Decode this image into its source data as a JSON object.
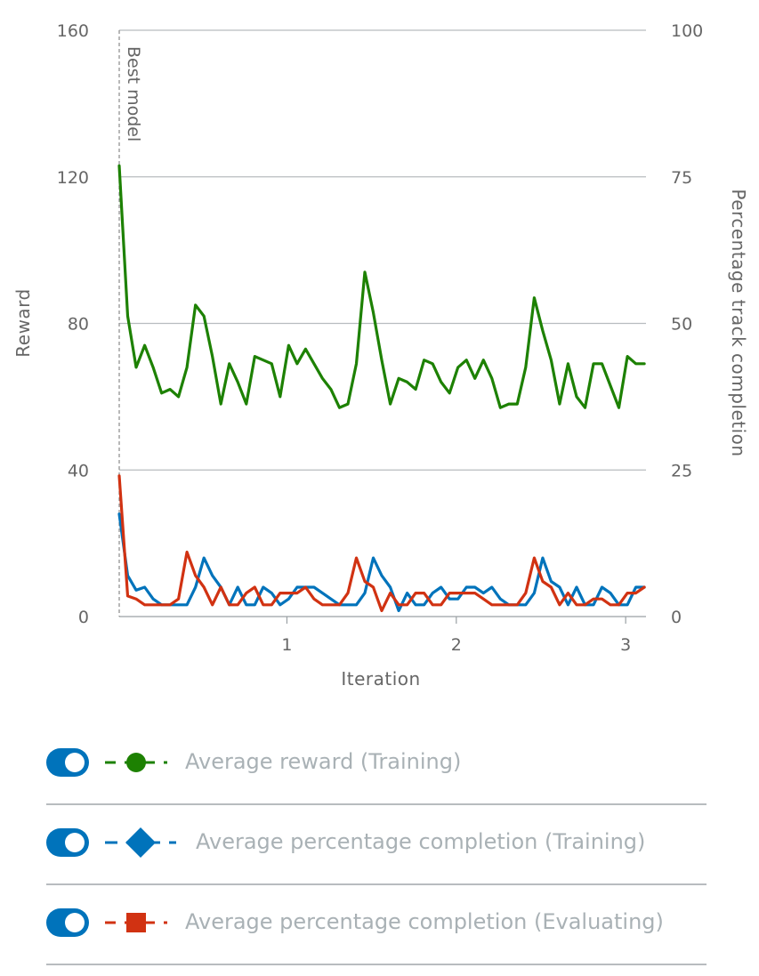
{
  "chart_data": {
    "type": "line",
    "xlabel": "Iteration",
    "ylabel_left": "Reward",
    "ylabel_right": "Percentage track completion",
    "x_ticks": [
      1,
      2,
      3
    ],
    "x_range": [
      0.01,
      3.12
    ],
    "y_left_ticks": [
      0,
      40,
      80,
      120,
      160
    ],
    "y_left_range": [
      0,
      160
    ],
    "y_right_ticks": [
      0,
      25,
      50,
      75,
      100
    ],
    "y_right_range": [
      0,
      100
    ],
    "grid": "horizontal",
    "marker_line": {
      "label": "Best model",
      "x": 0.01
    },
    "series": [
      {
        "name": "Average reward (Training)",
        "axis": "left",
        "color": "#1d8102",
        "marker": "circle",
        "x": [
          0.01,
          0.06,
          0.11,
          0.16,
          0.21,
          0.26,
          0.31,
          0.36,
          0.41,
          0.46,
          0.51,
          0.56,
          0.61,
          0.66,
          0.71,
          0.76,
          0.81,
          0.86,
          0.91,
          0.96,
          1.01,
          1.06,
          1.11,
          1.16,
          1.21,
          1.26,
          1.31,
          1.36,
          1.41,
          1.46,
          1.51,
          1.56,
          1.61,
          1.66,
          1.71,
          1.76,
          1.81,
          1.86,
          1.91,
          1.96,
          2.01,
          2.06,
          2.11,
          2.16,
          2.21,
          2.26,
          2.31,
          2.36,
          2.41,
          2.46,
          2.51,
          2.56,
          2.61,
          2.66,
          2.71,
          2.76,
          2.81,
          2.86,
          2.91,
          2.96,
          3.01,
          3.06,
          3.11
        ],
        "values": [
          123,
          82,
          68,
          74,
          68,
          61,
          62,
          60,
          68,
          85,
          82,
          71,
          58,
          69,
          64,
          58,
          71,
          70,
          69,
          60,
          74,
          69,
          73,
          69,
          65,
          62,
          57,
          58,
          69,
          94,
          83,
          70,
          58,
          65,
          64,
          62,
          70,
          69,
          64,
          61,
          68,
          70,
          65,
          70,
          65,
          57,
          58,
          58,
          68,
          87,
          78,
          70,
          58,
          69,
          60,
          57,
          69,
          69,
          63,
          57,
          71,
          69,
          69
        ]
      },
      {
        "name": "Average percentage completion (Training)",
        "axis": "right",
        "color": "#0073bb",
        "marker": "diamond",
        "x": [
          0.01,
          0.06,
          0.11,
          0.16,
          0.21,
          0.26,
          0.31,
          0.36,
          0.41,
          0.46,
          0.51,
          0.56,
          0.61,
          0.66,
          0.71,
          0.76,
          0.81,
          0.86,
          0.91,
          0.96,
          1.01,
          1.06,
          1.11,
          1.16,
          1.21,
          1.26,
          1.31,
          1.36,
          1.41,
          1.46,
          1.51,
          1.56,
          1.61,
          1.66,
          1.71,
          1.76,
          1.81,
          1.86,
          1.91,
          1.96,
          2.01,
          2.06,
          2.11,
          2.16,
          2.21,
          2.26,
          2.31,
          2.36,
          2.41,
          2.46,
          2.51,
          2.56,
          2.61,
          2.66,
          2.71,
          2.76,
          2.81,
          2.86,
          2.91,
          2.96,
          3.01,
          3.06,
          3.11
        ],
        "values": [
          17.5,
          7,
          4.5,
          5,
          3,
          2,
          2,
          2,
          2,
          5,
          10,
          7,
          5,
          2,
          5,
          2,
          2,
          5,
          4,
          2,
          3,
          5,
          5,
          5,
          4,
          3,
          2,
          2,
          2,
          4,
          10,
          7,
          5,
          1,
          4,
          2,
          2,
          4,
          5,
          3,
          3,
          5,
          5,
          4,
          5,
          3,
          2,
          2,
          2,
          4,
          10,
          6,
          5,
          2,
          5,
          2,
          2,
          5,
          4,
          2,
          2,
          5,
          5
        ]
      },
      {
        "name": "Average percentage completion (Evaluating)",
        "axis": "right",
        "color": "#d13212",
        "marker": "square",
        "x": [
          0.01,
          0.06,
          0.11,
          0.16,
          0.21,
          0.26,
          0.31,
          0.36,
          0.41,
          0.46,
          0.51,
          0.56,
          0.61,
          0.66,
          0.71,
          0.76,
          0.81,
          0.86,
          0.91,
          0.96,
          1.01,
          1.06,
          1.11,
          1.16,
          1.21,
          1.26,
          1.31,
          1.36,
          1.41,
          1.46,
          1.51,
          1.56,
          1.61,
          1.66,
          1.71,
          1.76,
          1.81,
          1.86,
          1.91,
          1.96,
          2.01,
          2.06,
          2.11,
          2.16,
          2.21,
          2.26,
          2.31,
          2.36,
          2.41,
          2.46,
          2.51,
          2.56,
          2.61,
          2.66,
          2.71,
          2.76,
          2.81,
          2.86,
          2.91,
          2.96,
          3.01,
          3.06,
          3.11
        ],
        "values": [
          24,
          3.5,
          3,
          2,
          2,
          2,
          2,
          3,
          11,
          7,
          5,
          2,
          5,
          2,
          2,
          4,
          5,
          2,
          2,
          4,
          4,
          4,
          5,
          3,
          2,
          2,
          2,
          4,
          10,
          6,
          5,
          1,
          4,
          2,
          2,
          4,
          4,
          2,
          2,
          4,
          4,
          4,
          4,
          3,
          2,
          2,
          2,
          2,
          4,
          10,
          6,
          5,
          2,
          4,
          2,
          2,
          3,
          3,
          2,
          2,
          4,
          4,
          5
        ]
      }
    ]
  },
  "legend": {
    "items": [
      {
        "label": "Average reward (Training)",
        "color": "#1d8102",
        "marker": "circle-icon"
      },
      {
        "label": "Average percentage completion (Training)",
        "color": "#0073bb",
        "marker": "diamond-icon"
      },
      {
        "label": "Average percentage completion (Evaluating)",
        "color": "#d13212",
        "marker": "square-icon"
      }
    ]
  }
}
